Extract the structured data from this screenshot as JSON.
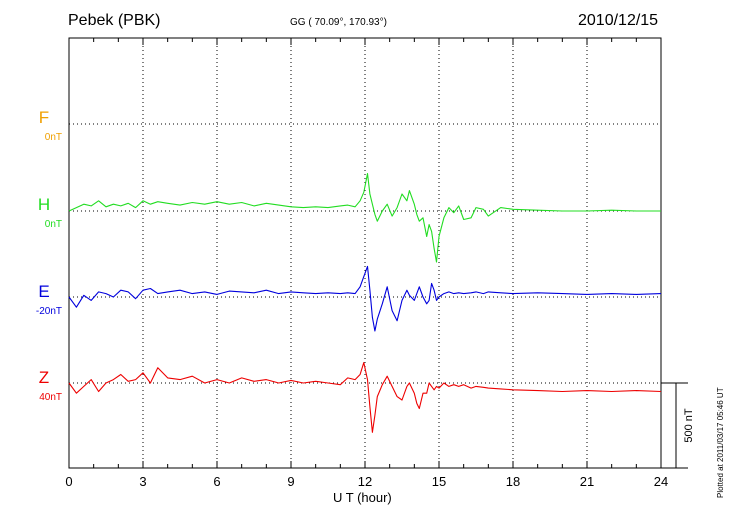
{
  "header": {
    "station": "Pebek (PBK)",
    "coords": "GG ( 70.09°, 170.93°)",
    "date": "2010/12/15"
  },
  "footer": {
    "plotted": "Plotted at 2011/03/17 05:46 UT"
  },
  "chart_data": {
    "type": "line",
    "title": "Pebek (PBK)",
    "xlabel": "U T (hour)",
    "xlim": [
      0,
      24
    ],
    "xticks": [
      "0",
      "3",
      "6",
      "9",
      "12",
      "15",
      "18",
      "21",
      "24"
    ],
    "grid": true,
    "scale_bar": {
      "label": "500 nT",
      "value": 500
    },
    "series": [
      {
        "name": "F",
        "offset": "0nT",
        "color": "#f0a000",
        "baseline_nT": 0,
        "x": [],
        "y": []
      },
      {
        "name": "H",
        "offset": "0nT",
        "color": "#22dd22",
        "baseline_nT": 0,
        "x": [
          0,
          0.3,
          0.6,
          0.9,
          1.2,
          1.5,
          1.8,
          2.1,
          2.4,
          2.7,
          3.0,
          3.3,
          3.6,
          4.0,
          4.5,
          5.0,
          5.5,
          6.0,
          6.5,
          7.0,
          7.5,
          8.0,
          8.5,
          9.0,
          9.5,
          10.0,
          10.5,
          11.0,
          11.3,
          11.6,
          11.8,
          11.95,
          12.1,
          12.2,
          12.3,
          12.4,
          12.5,
          12.7,
          12.9,
          13.1,
          13.3,
          13.5,
          13.7,
          13.8,
          14.0,
          14.1,
          14.2,
          14.35,
          14.5,
          14.6,
          14.7,
          14.8,
          14.9,
          15.0,
          15.2,
          15.4,
          15.6,
          15.8,
          16.0,
          16.3,
          16.5,
          16.8,
          17.0,
          17.5,
          18.0,
          19.0,
          20.0,
          21.0,
          22.0,
          23.0,
          24.0
        ],
        "y": [
          0,
          20,
          40,
          30,
          60,
          25,
          40,
          30,
          45,
          20,
          60,
          40,
          55,
          45,
          35,
          50,
          40,
          55,
          40,
          50,
          30,
          45,
          35,
          25,
          20,
          25,
          20,
          30,
          35,
          25,
          60,
          110,
          220,
          100,
          40,
          -20,
          -60,
          0,
          40,
          -30,
          20,
          100,
          60,
          120,
          40,
          -20,
          -60,
          -40,
          -150,
          -80,
          -120,
          -220,
          -300,
          -150,
          -40,
          20,
          -10,
          30,
          -50,
          -40,
          20,
          10,
          -30,
          20,
          10,
          5,
          0,
          0,
          5,
          0,
          0
        ]
      },
      {
        "name": "E",
        "offset": "-20nT",
        "color": "#0000dd",
        "baseline_nT": -20,
        "x": [
          0,
          0.3,
          0.6,
          0.9,
          1.2,
          1.5,
          1.8,
          2.1,
          2.4,
          2.7,
          3.0,
          3.3,
          3.6,
          4.0,
          4.5,
          5.0,
          5.5,
          6.0,
          6.5,
          7.0,
          7.5,
          8.0,
          8.5,
          9.0,
          9.5,
          10.0,
          10.5,
          11.0,
          11.3,
          11.6,
          11.8,
          11.95,
          12.1,
          12.2,
          12.3,
          12.4,
          12.5,
          12.7,
          12.9,
          13.1,
          13.3,
          13.5,
          13.7,
          13.8,
          14.0,
          14.1,
          14.2,
          14.35,
          14.5,
          14.6,
          14.7,
          14.8,
          14.9,
          15.0,
          15.2,
          15.4,
          15.6,
          15.8,
          16.0,
          16.3,
          16.5,
          16.8,
          17.0,
          17.5,
          18.0,
          19.0,
          20.0,
          21.0,
          22.0,
          23.0,
          24.0
        ],
        "y": [
          -20,
          -80,
          -10,
          -40,
          10,
          0,
          -20,
          20,
          10,
          -30,
          20,
          30,
          0,
          10,
          20,
          0,
          10,
          -5,
          15,
          10,
          5,
          20,
          0,
          10,
          5,
          0,
          5,
          0,
          5,
          0,
          40,
          100,
          160,
          20,
          -140,
          -220,
          -150,
          -60,
          40,
          -100,
          -160,
          -40,
          20,
          -10,
          -40,
          0,
          40,
          -20,
          -60,
          -40,
          60,
          20,
          -40,
          -20,
          0,
          10,
          0,
          5,
          0,
          5,
          10,
          0,
          10,
          5,
          0,
          5,
          0,
          -5,
          0,
          -5,
          0
        ]
      },
      {
        "name": "Z",
        "offset": "40nT",
        "color": "#ee0000",
        "baseline_nT": 40,
        "x": [
          0,
          0.3,
          0.6,
          0.9,
          1.2,
          1.5,
          1.8,
          2.1,
          2.4,
          2.7,
          3.0,
          3.3,
          3.6,
          4.0,
          4.5,
          5.0,
          5.5,
          6.0,
          6.5,
          7.0,
          7.5,
          8.0,
          8.5,
          9.0,
          9.5,
          10.0,
          10.5,
          11.0,
          11.3,
          11.6,
          11.8,
          11.95,
          12.1,
          12.2,
          12.3,
          12.4,
          12.5,
          12.7,
          12.9,
          13.1,
          13.3,
          13.5,
          13.7,
          13.8,
          14.0,
          14.1,
          14.2,
          14.35,
          14.5,
          14.6,
          14.7,
          14.8,
          14.9,
          15.0,
          15.2,
          15.4,
          15.6,
          15.8,
          16.0,
          16.3,
          16.5,
          16.8,
          17.0,
          17.5,
          18.0,
          19.0,
          20.0,
          21.0,
          22.0,
          23.0,
          24.0
        ],
        "y": [
          40,
          -20,
          20,
          60,
          -10,
          40,
          60,
          90,
          50,
          60,
          100,
          40,
          130,
          70,
          60,
          80,
          40,
          60,
          40,
          70,
          50,
          60,
          40,
          55,
          40,
          50,
          40,
          30,
          70,
          60,
          90,
          160,
          60,
          -100,
          -250,
          -150,
          -40,
          30,
          80,
          20,
          -40,
          -60,
          20,
          40,
          -20,
          -80,
          -110,
          -20,
          -20,
          40,
          20,
          0,
          20,
          10,
          40,
          20,
          30,
          20,
          30,
          10,
          20,
          15,
          10,
          5,
          0,
          -5,
          -10,
          -5,
          -10,
          -5,
          -10
        ]
      }
    ]
  }
}
